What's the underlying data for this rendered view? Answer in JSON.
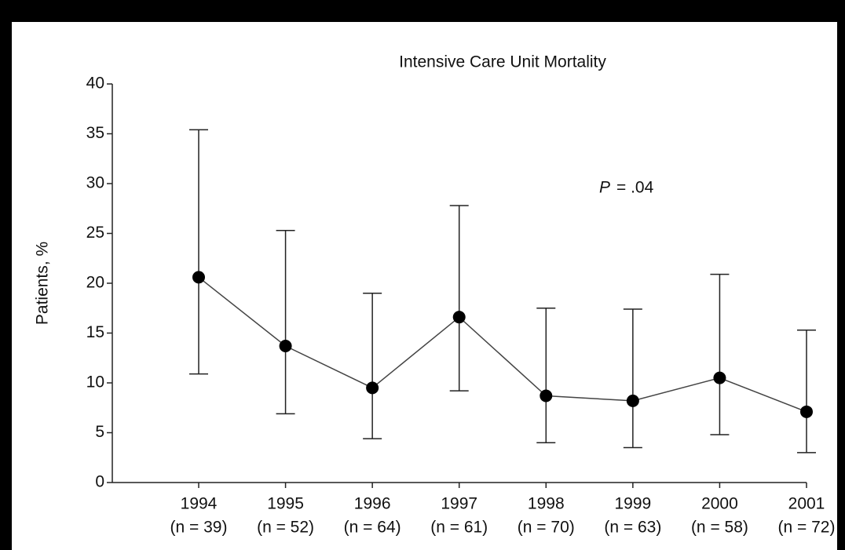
{
  "chart_data": {
    "type": "line",
    "title": "Intensive Care Unit Mortality",
    "y_label": "Patients, %",
    "annotation_symbol": "P",
    "annotation_value": "= .04",
    "categories": [
      "1994",
      "1995",
      "1996",
      "1997",
      "1998",
      "1999",
      "2000",
      "2001"
    ],
    "category_sublabels": [
      "(n = 39)",
      "(n = 52)",
      "(n = 64)",
      "(n = 61)",
      "(n = 70)",
      "(n = 63)",
      "(n = 58)",
      "(n = 72)"
    ],
    "series": [
      {
        "name": "ICU mortality",
        "color": "#000000",
        "values": [
          20.6,
          13.7,
          9.5,
          16.6,
          8.7,
          8.2,
          10.5,
          7.1
        ],
        "ci_lower": [
          10.9,
          6.9,
          4.4,
          9.2,
          4.0,
          3.5,
          4.8,
          3.0
        ],
        "ci_upper": [
          35.4,
          25.3,
          19.0,
          27.8,
          17.5,
          17.4,
          20.9,
          15.3
        ]
      }
    ],
    "ylim": [
      0,
      40
    ],
    "yticks": [
      0,
      5,
      10,
      15,
      20,
      25,
      30,
      35,
      40
    ]
  }
}
